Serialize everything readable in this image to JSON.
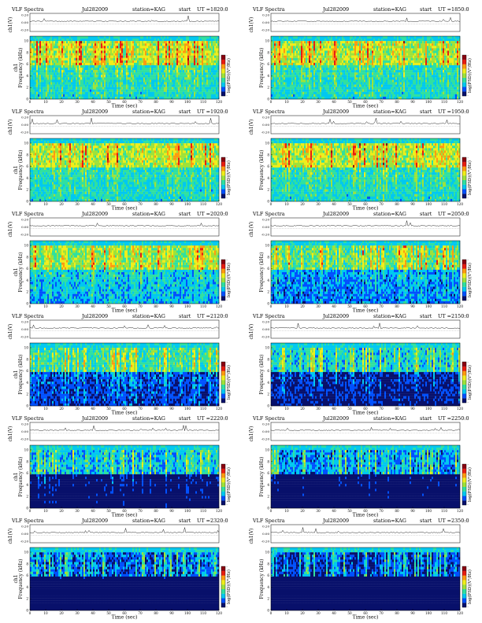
{
  "chart_data": [
    {
      "type": "heatmap",
      "panel_title": "VLF Spectra",
      "date": "Jul282009",
      "station": "station=KAG",
      "start_label": "start",
      "ut": "UT =1820:0",
      "ch_label": "ch1(V)",
      "ch_ticks": [
        "0.20",
        "0.00",
        "-0.20"
      ],
      "ylabel": "Frequency (kHz)",
      "y_top_label": "ch1",
      "yticks": [
        0,
        2,
        4,
        6,
        8,
        10
      ],
      "xticks": [
        0,
        10,
        20,
        30,
        40,
        50,
        60,
        70,
        80,
        90,
        100,
        110,
        120
      ],
      "xlabel": "Time (sec)",
      "cb_label": "log(PSD)(V²/Hz)",
      "cb_ticks": [
        "-",
        "-"
      ]
    },
    {
      "type": "heatmap",
      "panel_title": "VLF Spectra",
      "date": "Jul282009",
      "station": "station=KAG",
      "start_label": "start",
      "ut": "UT =1850:0",
      "ch_label": "ch1(V)",
      "ch_ticks": [
        "0.20",
        "0.00",
        "-0.20"
      ],
      "ylabel": "Frequency (kHz)",
      "y_top_label": "",
      "yticks": [
        0,
        2,
        4,
        6,
        8,
        10
      ],
      "xticks": [
        0,
        10,
        20,
        30,
        40,
        50,
        60,
        70,
        80,
        90,
        100,
        110,
        120
      ],
      "xlabel": "Time (sec)",
      "cb_label": "log(PSD)(V²/Hz)",
      "cb_ticks": [
        "-",
        "-"
      ]
    },
    {
      "type": "heatmap",
      "panel_title": "VLF Spectra",
      "date": "Jul282009",
      "station": "station=KAG",
      "start_label": "start",
      "ut": "UT =1920:0",
      "ch_label": "ch1(V)",
      "ch_ticks": [
        "0.20",
        "0.00",
        "-0.20"
      ],
      "ylabel": "Frequency (kHz)",
      "y_top_label": "ch1",
      "yticks": [
        0,
        2,
        4,
        6,
        8,
        10
      ],
      "xticks": [
        0,
        10,
        20,
        30,
        40,
        50,
        60,
        70,
        80,
        90,
        100,
        110,
        120
      ],
      "xlabel": "Time (sec)",
      "cb_label": "log(PSD)(V²/Hz)",
      "cb_ticks": [
        "-",
        "-"
      ]
    },
    {
      "type": "heatmap",
      "panel_title": "VLF Spectra",
      "date": "Jul282009",
      "station": "station=KAG",
      "start_label": "start",
      "ut": "UT =1950:0",
      "ch_label": "ch1(V)",
      "ch_ticks": [
        "0.20",
        "0.00",
        "-0.20"
      ],
      "ylabel": "Frequency (kHz)",
      "y_top_label": "",
      "yticks": [
        0,
        2,
        4,
        6,
        8,
        10
      ],
      "xticks": [
        0,
        10,
        20,
        30,
        40,
        50,
        60,
        70,
        80,
        90,
        100,
        110,
        120
      ],
      "xlabel": "Time (sec)",
      "cb_label": "log(PSD)(V²/Hz)",
      "cb_ticks": [
        "-",
        "-"
      ]
    },
    {
      "type": "heatmap",
      "panel_title": "VLF Spectra",
      "date": "Jul282009",
      "station": "station=KAG",
      "start_label": "start",
      "ut": "UT =2020:0",
      "ch_label": "ch1(V)",
      "ch_ticks": [
        "0.20",
        "0.00",
        "-0.20"
      ],
      "ylabel": "Frequency (kHz)",
      "y_top_label": "ch1",
      "yticks": [
        0,
        2,
        4,
        6,
        8,
        10
      ],
      "xticks": [
        0,
        10,
        20,
        30,
        40,
        50,
        60,
        70,
        80,
        90,
        100,
        110,
        120
      ],
      "xlabel": "Time (sec)",
      "cb_label": "log(PSD)(V²/Hz)",
      "cb_ticks": [
        "-",
        "-"
      ]
    },
    {
      "type": "heatmap",
      "panel_title": "VLF Spectra",
      "date": "Jul282009",
      "station": "station=KAG",
      "start_label": "start",
      "ut": "UT =2050:0",
      "ch_label": "ch1(V)",
      "ch_ticks": [
        "0.20",
        "0.00",
        "-0.20"
      ],
      "ylabel": "Frequency (kHz)",
      "y_top_label": "",
      "yticks": [
        0,
        2,
        4,
        6,
        8,
        10
      ],
      "xticks": [
        0,
        10,
        20,
        30,
        40,
        50,
        60,
        70,
        80,
        90,
        100,
        110,
        120
      ],
      "xlabel": "Time (sec)",
      "cb_label": "log(PSD)(V²/Hz)",
      "cb_ticks": [
        "-",
        "-"
      ]
    },
    {
      "type": "heatmap",
      "panel_title": "VLF Spectra",
      "date": "Jul282009",
      "station": "station=KAG",
      "start_label": "start",
      "ut": "UT =2120:0",
      "ch_label": "ch1(V)",
      "ch_ticks": [
        "0.20",
        "0.00",
        "-0.20"
      ],
      "ylabel": "Frequency (kHz)",
      "y_top_label": "ch1",
      "yticks": [
        0,
        2,
        4,
        6,
        8,
        10
      ],
      "xticks": [
        0,
        10,
        20,
        30,
        40,
        50,
        60,
        70,
        80,
        90,
        100,
        110,
        120
      ],
      "xlabel": "Time (sec)",
      "cb_label": "log(PSD)(V²/Hz)",
      "cb_ticks": [
        "-",
        "-"
      ]
    },
    {
      "type": "heatmap",
      "panel_title": "VLF Spectra",
      "date": "Jul282009",
      "station": "station=KAG",
      "start_label": "start",
      "ut": "UT =2150:0",
      "ch_label": "ch1(V)",
      "ch_ticks": [
        "0.20",
        "0.00",
        "-0.20"
      ],
      "ylabel": "Frequency (kHz)",
      "y_top_label": "",
      "yticks": [
        0,
        2,
        4,
        6,
        8,
        10
      ],
      "xticks": [
        0,
        10,
        20,
        30,
        40,
        50,
        60,
        70,
        80,
        90,
        100,
        110,
        120
      ],
      "xlabel": "Time (sec)",
      "cb_label": "log(PSD)(V²/Hz)",
      "cb_ticks": [
        "-",
        "-"
      ]
    },
    {
      "type": "heatmap",
      "panel_title": "VLF Spectra",
      "date": "Jul282009",
      "station": "station=KAG",
      "start_label": "start",
      "ut": "UT =2220:0",
      "ch_label": "ch1(V)",
      "ch_ticks": [
        "0.20",
        "0.00",
        "-0.20"
      ],
      "ylabel": "Frequency (kHz)",
      "y_top_label": "ch1",
      "yticks": [
        0,
        2,
        4,
        6,
        8,
        10
      ],
      "xticks": [
        0,
        10,
        20,
        30,
        40,
        50,
        60,
        70,
        80,
        90,
        100,
        110,
        120
      ],
      "xlabel": "Time (sec)",
      "cb_label": "log(PSD)(V²/Hz)",
      "cb_ticks": [
        "-",
        "-"
      ]
    },
    {
      "type": "heatmap",
      "panel_title": "VLF Spectra",
      "date": "Jul282009",
      "station": "station=KAG",
      "start_label": "start",
      "ut": "UT =2250:0",
      "ch_label": "ch1(V)",
      "ch_ticks": [
        "0.20",
        "0.00",
        "-0.20"
      ],
      "ylabel": "Frequency (kHz)",
      "y_top_label": "",
      "yticks": [
        0,
        2,
        4,
        6,
        8,
        10
      ],
      "xticks": [
        0,
        10,
        20,
        30,
        40,
        50,
        60,
        70,
        80,
        90,
        100,
        110,
        120
      ],
      "xlabel": "Time (sec)",
      "cb_label": "log(PSD)(V²/Hz)",
      "cb_ticks": [
        "-",
        "-"
      ]
    },
    {
      "type": "heatmap",
      "panel_title": "VLF Spectra",
      "date": "Jul282009",
      "station": "station=KAG",
      "start_label": "start",
      "ut": "UT =2320:0",
      "ch_label": "ch1(V)",
      "ch_ticks": [
        "0.20",
        "0.00",
        "-0.20"
      ],
      "ylabel": "Frequency (kHz)",
      "y_top_label": "ch1",
      "yticks": [
        0,
        2,
        4,
        6,
        8,
        10
      ],
      "xticks": [
        0,
        10,
        20,
        30,
        40,
        50,
        60,
        70,
        80,
        90,
        100,
        110,
        120
      ],
      "xlabel": "Time (sec)",
      "cb_label": "log(PSD)(V²/Hz)",
      "cb_ticks": [
        "-",
        "-"
      ]
    },
    {
      "type": "heatmap",
      "panel_title": "VLF Spectra",
      "date": "Jul282009",
      "station": "station=KAG",
      "start_label": "start",
      "ut": "UT =2350:0",
      "ch_label": "ch1(V)",
      "ch_ticks": [
        "0.20",
        "0.00",
        "-0.20"
      ],
      "ylabel": "Frequency (kHz)",
      "y_top_label": "",
      "yticks": [
        0,
        2,
        4,
        6,
        8,
        10
      ],
      "xticks": [
        0,
        10,
        20,
        30,
        40,
        50,
        60,
        70,
        80,
        90,
        100,
        110,
        120
      ],
      "xlabel": "Time (sec)",
      "cb_label": "log(PSD)(V²/Hz)",
      "cb_ticks": [
        "-",
        "-"
      ]
    }
  ],
  "colormap": [
    "#08106b",
    "#0050ff",
    "#00c8f0",
    "#30e0a0",
    "#9ee23a",
    "#f0ee1a",
    "#ff9a10",
    "#e81c10",
    "#8a0010"
  ]
}
